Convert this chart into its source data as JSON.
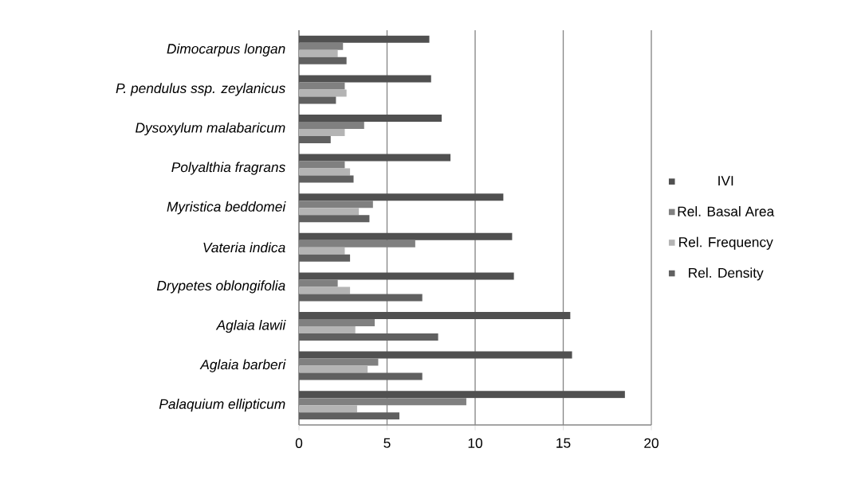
{
  "chart_data": {
    "type": "bar",
    "orientation": "horizontal",
    "categories": [
      "Dimocarpus longan",
      "P. pendulus ssp. zeylanicus",
      "Dysoxylum malabaricum",
      "Polyalthia fragrans",
      "Myristica beddomei",
      "Vateria indica",
      "Drypetes oblongifolia",
      "Aglaia lawii",
      "Aglaia barberi",
      "Palaquium ellipticum"
    ],
    "series": [
      {
        "name": "IVI",
        "color": "#505050",
        "values": [
          7.4,
          7.5,
          8.1,
          8.6,
          11.6,
          12.1,
          12.2,
          15.4,
          15.5,
          18.5
        ]
      },
      {
        "name": "Rel. Basal Area",
        "color": "#808080",
        "values": [
          2.5,
          2.6,
          3.7,
          2.6,
          4.2,
          6.6,
          2.2,
          4.3,
          4.5,
          9.5
        ]
      },
      {
        "name": "Rel. Frequency",
        "color": "#b4b4b4",
        "values": [
          2.2,
          2.7,
          2.6,
          2.9,
          3.4,
          2.6,
          2.9,
          3.2,
          3.9,
          3.3
        ]
      },
      {
        "name": "Rel. Density",
        "color": "#606060",
        "values": [
          2.7,
          2.1,
          1.8,
          3.1,
          4.0,
          2.9,
          7.0,
          7.9,
          7.0,
          5.7
        ]
      }
    ],
    "xlim": [
      0,
      20
    ],
    "xticks": [
      0,
      5,
      10,
      15,
      20
    ],
    "grid": "x",
    "legend": "right"
  }
}
